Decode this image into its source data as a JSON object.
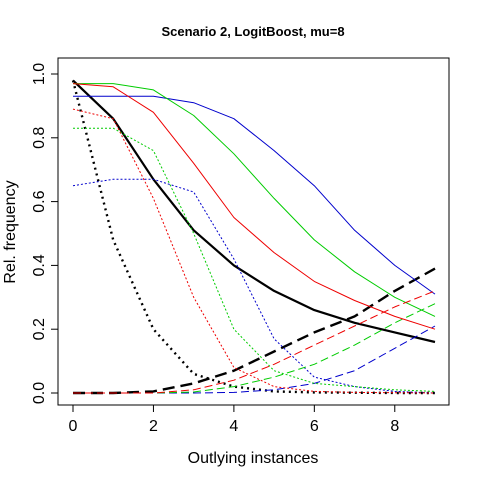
{
  "chart_data": {
    "type": "line",
    "title": "Scenario 2, LogitBoost, mu=8",
    "xlabel": "Outlying instances",
    "ylabel": "Rel. frequency",
    "xlim": [
      0,
      9
    ],
    "ylim": [
      0,
      1
    ],
    "xticks": [
      0,
      2,
      4,
      6,
      8
    ],
    "yticks": [
      0.0,
      0.2,
      0.4,
      0.6,
      0.8,
      1.0
    ],
    "ytick_labels": [
      "0.0",
      "0.2",
      "0.4",
      "0.6",
      "0.8",
      "1.0"
    ],
    "grid": false,
    "x": [
      0,
      1,
      2,
      3,
      4,
      5,
      6,
      7,
      8,
      9
    ],
    "series": [
      {
        "color": "#000000",
        "dash": "solid",
        "width": 2.2,
        "values": [
          0.98,
          0.86,
          0.67,
          0.51,
          0.4,
          0.32,
          0.26,
          0.22,
          0.19,
          0.16
        ]
      },
      {
        "color": "#000000",
        "dash": "dotted",
        "width": 2.4,
        "values": [
          0.98,
          0.48,
          0.2,
          0.06,
          0.02,
          0.005,
          0.002,
          0.001,
          0.0,
          0.0
        ]
      },
      {
        "color": "#000000",
        "dash": "dashed",
        "width": 2.4,
        "values": [
          0.0,
          0.0,
          0.005,
          0.03,
          0.07,
          0.13,
          0.19,
          0.24,
          0.32,
          0.39
        ]
      },
      {
        "color": "#0000cc",
        "dash": "solid",
        "width": 1,
        "values": [
          0.93,
          0.93,
          0.93,
          0.91,
          0.86,
          0.76,
          0.65,
          0.51,
          0.4,
          0.31
        ]
      },
      {
        "color": "#0000cc",
        "dash": "dotted",
        "width": 1,
        "values": [
          0.65,
          0.67,
          0.67,
          0.63,
          0.42,
          0.17,
          0.05,
          0.02,
          0.005,
          0.0
        ]
      },
      {
        "color": "#0000cc",
        "dash": "dashed",
        "width": 1,
        "values": [
          0.0,
          0.0,
          0.0,
          0.0,
          0.002,
          0.01,
          0.03,
          0.07,
          0.14,
          0.21
        ]
      },
      {
        "color": "#00cc00",
        "dash": "solid",
        "width": 1,
        "values": [
          0.97,
          0.97,
          0.95,
          0.87,
          0.75,
          0.61,
          0.48,
          0.38,
          0.3,
          0.24
        ]
      },
      {
        "color": "#00cc00",
        "dash": "dotted",
        "width": 1,
        "values": [
          0.83,
          0.83,
          0.76,
          0.5,
          0.2,
          0.07,
          0.03,
          0.02,
          0.01,
          0.005
        ]
      },
      {
        "color": "#00cc00",
        "dash": "dashed",
        "width": 1,
        "values": [
          0.0,
          0.0,
          0.0,
          0.003,
          0.02,
          0.05,
          0.09,
          0.15,
          0.22,
          0.28
        ]
      },
      {
        "color": "#ee0000",
        "dash": "solid",
        "width": 1,
        "values": [
          0.97,
          0.96,
          0.88,
          0.72,
          0.55,
          0.44,
          0.35,
          0.29,
          0.24,
          0.2
        ]
      },
      {
        "color": "#ee0000",
        "dash": "dotted",
        "width": 1,
        "values": [
          0.89,
          0.86,
          0.61,
          0.3,
          0.08,
          0.02,
          0.005,
          0.002,
          0.001,
          0.0
        ]
      },
      {
        "color": "#ee0000",
        "dash": "dashed",
        "width": 1,
        "values": [
          0.0,
          0.0,
          0.0,
          0.01,
          0.04,
          0.09,
          0.15,
          0.21,
          0.27,
          0.32
        ]
      }
    ]
  }
}
